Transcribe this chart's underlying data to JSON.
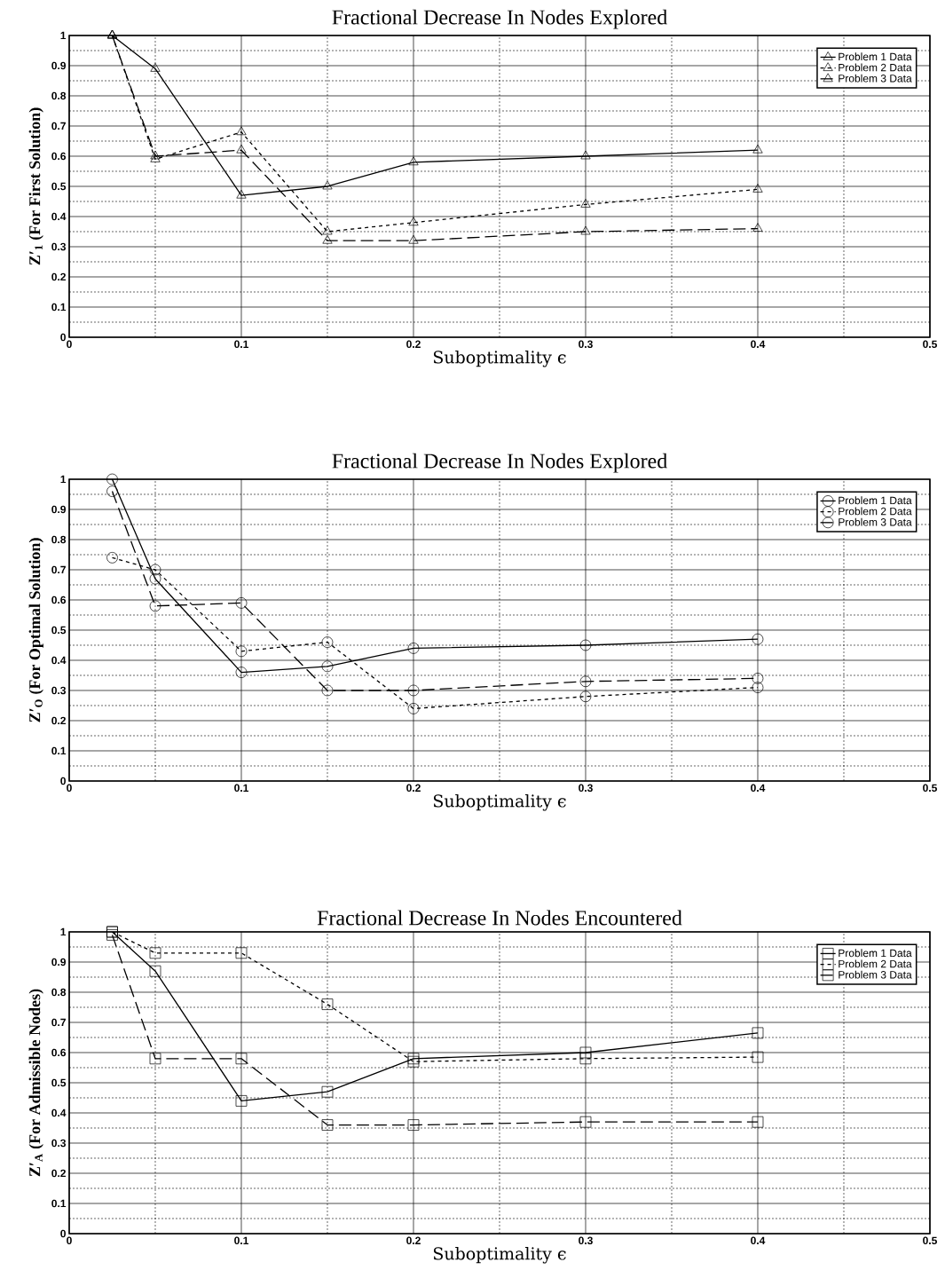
{
  "chart_data": [
    {
      "type": "line",
      "title": "Fractional Decrease In Nodes Explored",
      "xlabel": "Suboptimality  ϵ",
      "ylabel": "Z′$_{1}$ (For First Solution)",
      "x": [
        0.025,
        0.05,
        0.1,
        0.15,
        0.2,
        0.3,
        0.4
      ],
      "xlim": [
        0,
        0.5
      ],
      "xticks": [
        0,
        0.1,
        0.2,
        0.3,
        0.4,
        0.5
      ],
      "ylim": [
        0,
        1
      ],
      "yticks": [
        0,
        0.1,
        0.2,
        0.3,
        0.4,
        0.5,
        0.6,
        0.7,
        0.8,
        0.9,
        1
      ],
      "grid": true,
      "legend": "top right",
      "marker": "triangle",
      "series": [
        {
          "name": "Problem 1 Data",
          "color": "#000000",
          "line_style": "solid",
          "values": [
            1.0,
            0.89,
            0.47,
            0.5,
            0.58,
            0.6,
            0.62
          ]
        },
        {
          "name": "Problem 2 Data",
          "color": "#000000",
          "line_style": "dotted",
          "values": [
            1.0,
            0.59,
            0.68,
            0.35,
            0.38,
            0.44,
            0.49
          ]
        },
        {
          "name": "Problem 3 Data",
          "color": "#000000",
          "line_style": "dashed",
          "values": [
            1.0,
            0.6,
            0.62,
            0.32,
            0.32,
            0.35,
            0.36
          ]
        }
      ]
    },
    {
      "type": "line",
      "title": "Fractional Decrease In Nodes Explored",
      "xlabel": "Suboptimality  ϵ",
      "ylabel": "Z′$_{O}$ (For Optimal Solution)",
      "x": [
        0.025,
        0.05,
        0.1,
        0.15,
        0.2,
        0.3,
        0.4
      ],
      "xlim": [
        0,
        0.5
      ],
      "xticks": [
        0,
        0.1,
        0.2,
        0.3,
        0.4,
        0.5
      ],
      "ylim": [
        0,
        1
      ],
      "yticks": [
        0,
        0.1,
        0.2,
        0.3,
        0.4,
        0.5,
        0.6,
        0.7,
        0.8,
        0.9,
        1
      ],
      "grid": true,
      "legend": "top right",
      "marker": "circle",
      "series": [
        {
          "name": "Problem 1 Data",
          "color": "#000000",
          "line_style": "solid",
          "values": [
            1.0,
            0.67,
            0.36,
            0.38,
            0.44,
            0.45,
            0.47
          ]
        },
        {
          "name": "Problem 2 Data",
          "color": "#000000",
          "line_style": "dotted",
          "values": [
            0.74,
            0.7,
            0.43,
            0.46,
            0.24,
            0.28,
            0.31
          ]
        },
        {
          "name": "Problem 3 Data",
          "color": "#000000",
          "line_style": "dashed",
          "values": [
            0.96,
            0.58,
            0.59,
            0.3,
            0.3,
            0.33,
            0.34
          ]
        }
      ]
    },
    {
      "type": "line",
      "title": "Fractional Decrease In Nodes Encountered",
      "xlabel": "Suboptimality  ϵ",
      "ylabel": "Z′$_{A}$ (For Admissible Nodes)",
      "x": [
        0.025,
        0.05,
        0.1,
        0.15,
        0.2,
        0.3,
        0.4
      ],
      "xlim": [
        0,
        0.5
      ],
      "xticks": [
        0,
        0.1,
        0.2,
        0.3,
        0.4,
        0.5
      ],
      "ylim": [
        0,
        1
      ],
      "yticks": [
        0,
        0.1,
        0.2,
        0.3,
        0.4,
        0.5,
        0.6,
        0.7,
        0.8,
        0.9,
        1
      ],
      "grid": true,
      "legend": "top right",
      "marker": "square",
      "series": [
        {
          "name": "Problem 1 Data",
          "color": "#000000",
          "line_style": "solid",
          "values": [
            1.0,
            0.87,
            0.44,
            0.47,
            0.58,
            0.6,
            0.665
          ]
        },
        {
          "name": "Problem 2 Data",
          "color": "#000000",
          "line_style": "dotted",
          "values": [
            1.0,
            0.93,
            0.93,
            0.76,
            0.57,
            0.58,
            0.585
          ]
        },
        {
          "name": "Problem 3 Data",
          "color": "#000000",
          "line_style": "dashed",
          "values": [
            0.99,
            0.58,
            0.58,
            0.36,
            0.36,
            0.37,
            0.37
          ]
        }
      ]
    }
  ]
}
